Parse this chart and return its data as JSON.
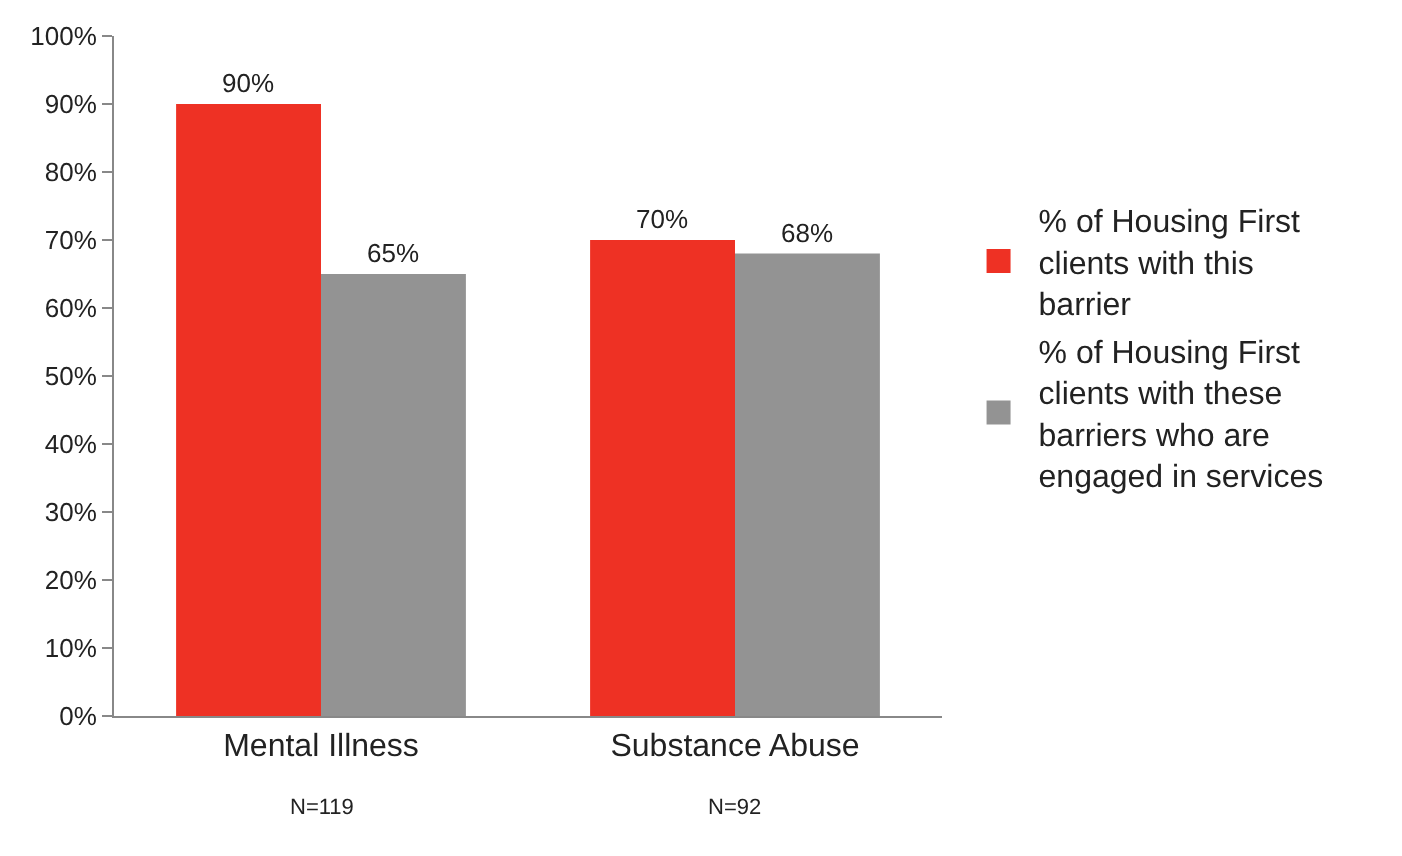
{
  "chart_data": {
    "type": "bar",
    "categories": [
      "Mental Illness",
      "Substance Abuse"
    ],
    "series": [
      {
        "name": "% of Housing First clients with this barrier",
        "color": "#ee3124",
        "values": [
          90,
          70
        ],
        "value_labels": [
          "90%",
          "70%"
        ]
      },
      {
        "name": "% of Housing First clients with these barriers who are engaged in services",
        "color": "#939393",
        "values": [
          65,
          68
        ],
        "value_labels": [
          "65%",
          "68%"
        ]
      }
    ],
    "ylim": [
      0,
      100
    ],
    "yticks": [
      {
        "value": 0,
        "label": "0%"
      },
      {
        "value": 10,
        "label": "10%"
      },
      {
        "value": 20,
        "label": "20%"
      },
      {
        "value": 30,
        "label": "30%"
      },
      {
        "value": 40,
        "label": "40%"
      },
      {
        "value": 50,
        "label": "50%"
      },
      {
        "value": 60,
        "label": "60%"
      },
      {
        "value": 70,
        "label": "70%"
      },
      {
        "value": 80,
        "label": "80%"
      },
      {
        "value": 90,
        "label": "90%"
      },
      {
        "value": 100,
        "label": "100%"
      }
    ],
    "grid": false,
    "legend": "right",
    "annotations": [
      "N=119",
      "N=92"
    ]
  }
}
